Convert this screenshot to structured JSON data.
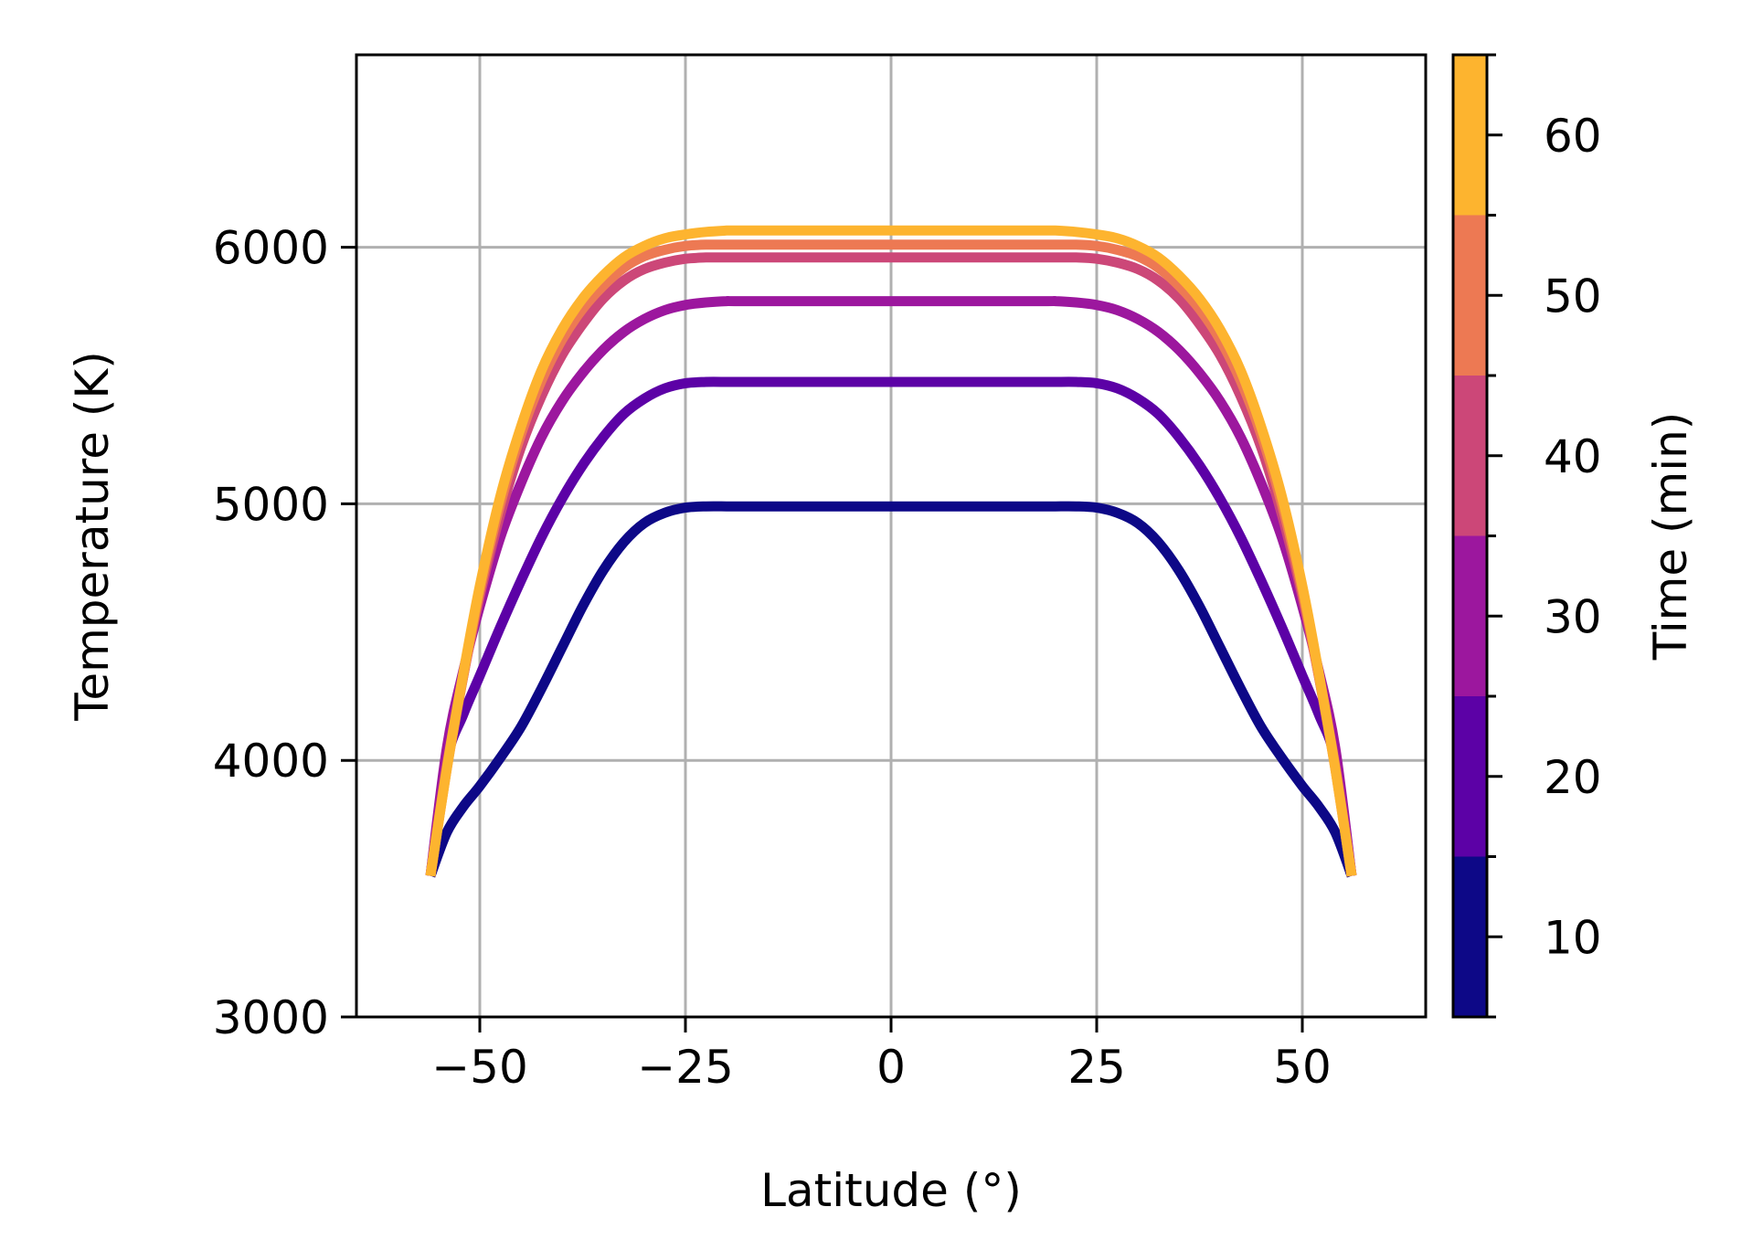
{
  "chart_data": {
    "type": "line",
    "xlabel": "Latitude (°)",
    "ylabel": "Temperature (K)",
    "xlim": [
      -65,
      65
    ],
    "ylim": [
      3000,
      6750
    ],
    "xticks": [
      -50,
      -25,
      0,
      25,
      50
    ],
    "xtick_labels": [
      "−50",
      "−25",
      "0",
      "25",
      "50"
    ],
    "yticks": [
      3000,
      4000,
      5000,
      6000
    ],
    "ytick_labels": [
      "3000",
      "4000",
      "5000",
      "6000"
    ],
    "grid": true,
    "colorbar": {
      "label": "Time (min)",
      "range": [
        5,
        65
      ],
      "ticks": [
        10,
        20,
        30,
        40,
        50,
        60
      ],
      "tick_labels": [
        "10",
        "20",
        "30",
        "40",
        "50",
        "60"
      ],
      "bins": [
        {
          "from": 5,
          "to": 15,
          "color": "#0d0887"
        },
        {
          "from": 15,
          "to": 25,
          "color": "#5c01a6"
        },
        {
          "from": 25,
          "to": 35,
          "color": "#9c179e"
        },
        {
          "from": 35,
          "to": 45,
          "color": "#cc4778"
        },
        {
          "from": 45,
          "to": 55,
          "color": "#ed7953"
        },
        {
          "from": 55,
          "to": 65,
          "color": "#fdb42f"
        }
      ]
    },
    "series": [
      {
        "time": 10,
        "color": "#0d0887",
        "x": [
          -56,
          -54,
          -52,
          -50,
          -47.5,
          -45,
          -42.5,
          -40,
          -37.5,
          -35,
          -32.5,
          -30,
          -27.5,
          -25,
          -22.5,
          -20,
          -19,
          -10,
          0,
          10,
          19,
          20,
          22.5,
          25,
          27.5,
          30,
          32.5,
          35,
          37.5,
          40,
          42.5,
          45,
          47.5,
          50,
          52,
          54,
          56
        ],
        "y": [
          3550,
          3720,
          3820,
          3900,
          4010,
          4130,
          4280,
          4440,
          4600,
          4740,
          4850,
          4925,
          4965,
          4985,
          4990,
          4990,
          4990,
          4990,
          4990,
          4990,
          4990,
          4990,
          4990,
          4985,
          4965,
          4925,
          4850,
          4740,
          4600,
          4440,
          4280,
          4130,
          4010,
          3900,
          3820,
          3720,
          3550
        ]
      },
      {
        "time": 20,
        "color": "#5c01a6",
        "x": [
          -56,
          -54,
          -52,
          -50,
          -47.5,
          -45,
          -42.5,
          -40,
          -37.5,
          -35,
          -32.5,
          -30,
          -27.5,
          -25,
          -22.5,
          -20,
          -19,
          -10,
          0,
          10,
          19,
          20,
          22.5,
          25,
          27.5,
          30,
          32.5,
          35,
          37.5,
          40,
          42.5,
          45,
          47.5,
          50,
          52,
          54,
          56
        ],
        "y": [
          3550,
          4000,
          4180,
          4330,
          4520,
          4700,
          4870,
          5020,
          5150,
          5260,
          5350,
          5410,
          5450,
          5470,
          5475,
          5475,
          5475,
          5475,
          5475,
          5475,
          5475,
          5475,
          5475,
          5470,
          5450,
          5410,
          5350,
          5260,
          5150,
          5020,
          4870,
          4700,
          4520,
          4330,
          4180,
          4000,
          3550
        ]
      },
      {
        "time": 30,
        "color": "#9c179e",
        "x": [
          -56,
          -54,
          -52,
          -50,
          -47.5,
          -45,
          -42.5,
          -40,
          -37.5,
          -35,
          -32.5,
          -30,
          -27.5,
          -25,
          -22.5,
          -20,
          -19,
          -10,
          0,
          10,
          19,
          20,
          22.5,
          25,
          27.5,
          30,
          32.5,
          35,
          37.5,
          40,
          42.5,
          45,
          47.5,
          50,
          52,
          54,
          56
        ],
        "y": [
          3550,
          4050,
          4350,
          4600,
          4870,
          5080,
          5260,
          5400,
          5510,
          5600,
          5670,
          5720,
          5755,
          5775,
          5785,
          5790,
          5790,
          5790,
          5790,
          5790,
          5790,
          5790,
          5785,
          5775,
          5755,
          5720,
          5670,
          5600,
          5510,
          5400,
          5260,
          5080,
          4870,
          4600,
          4350,
          4050,
          3550
        ]
      },
      {
        "time": 40,
        "color": "#cc4778",
        "x": [
          -56,
          -54,
          -52,
          -50,
          -47.5,
          -45,
          -42.5,
          -40,
          -37.5,
          -35,
          -32.5,
          -30,
          -27.5,
          -25,
          -22.5,
          -20,
          -19,
          -10,
          0,
          10,
          19,
          20,
          22.5,
          25,
          27.5,
          30,
          32.5,
          35,
          37.5,
          40,
          42.5,
          45,
          47.5,
          50,
          52,
          54,
          56
        ],
        "y": [
          3550,
          3980,
          4330,
          4640,
          4960,
          5220,
          5420,
          5580,
          5700,
          5800,
          5870,
          5915,
          5940,
          5955,
          5960,
          5960,
          5960,
          5960,
          5960,
          5960,
          5960,
          5960,
          5960,
          5955,
          5940,
          5915,
          5870,
          5800,
          5700,
          5580,
          5420,
          5220,
          4960,
          4640,
          4330,
          3980,
          3550
        ]
      },
      {
        "time": 50,
        "color": "#ed7953",
        "x": [
          -56,
          -54,
          -52,
          -50,
          -47.5,
          -45,
          -42.5,
          -40,
          -37.5,
          -35,
          -32.5,
          -30,
          -27.5,
          -25,
          -22.5,
          -20,
          -19,
          -10,
          0,
          10,
          19,
          20,
          22.5,
          25,
          27.5,
          30,
          32.5,
          35,
          37.5,
          40,
          42.5,
          45,
          47.5,
          50,
          52,
          54,
          56
        ],
        "y": [
          3550,
          3970,
          4330,
          4660,
          5000,
          5270,
          5480,
          5640,
          5760,
          5850,
          5920,
          5965,
          5990,
          6005,
          6010,
          6010,
          6010,
          6010,
          6010,
          6010,
          6010,
          6010,
          6010,
          6005,
          5990,
          5965,
          5920,
          5850,
          5760,
          5640,
          5480,
          5270,
          5000,
          4660,
          4330,
          3970,
          3550
        ]
      },
      {
        "time": 60,
        "color": "#fdb42f",
        "x": [
          -56,
          -54,
          -52,
          -50,
          -47.5,
          -45,
          -42.5,
          -40,
          -37.5,
          -35,
          -32.5,
          -30,
          -27.5,
          -25,
          -22.5,
          -20,
          -19,
          -10,
          0,
          10,
          19,
          20,
          22.5,
          25,
          27.5,
          30,
          32.5,
          35,
          37.5,
          40,
          42.5,
          45,
          47.5,
          50,
          52,
          54,
          56
        ],
        "y": [
          3550,
          3970,
          4340,
          4680,
          5030,
          5300,
          5520,
          5680,
          5800,
          5890,
          5960,
          6005,
          6035,
          6050,
          6060,
          6065,
          6065,
          6065,
          6065,
          6065,
          6065,
          6065,
          6060,
          6050,
          6035,
          6005,
          5960,
          5890,
          5800,
          5680,
          5520,
          5300,
          5030,
          4680,
          4340,
          3970,
          3550
        ]
      }
    ]
  }
}
